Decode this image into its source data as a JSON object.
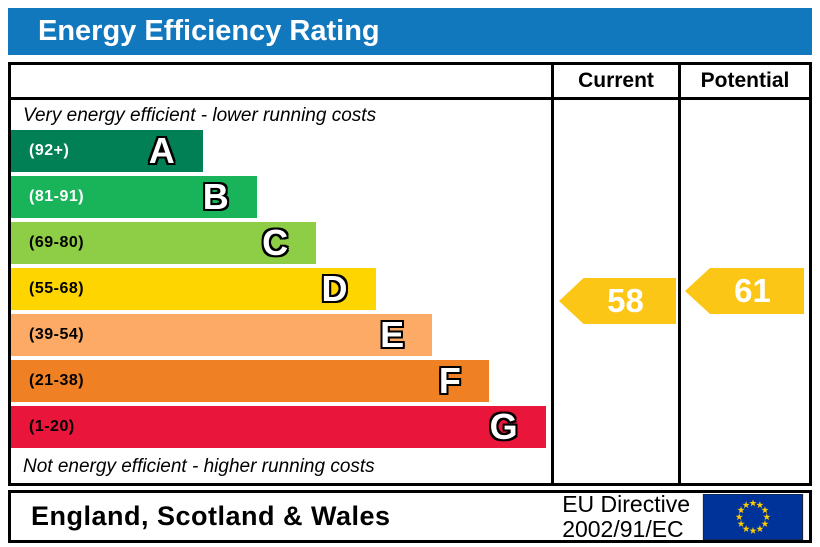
{
  "title": "Energy Efficiency Rating",
  "colors": {
    "title_bar": "#1278be",
    "arrow": "#fcc616",
    "eu_flag_blue": "#003399",
    "eu_flag_stars": "#ffcc00",
    "border": "#000000"
  },
  "columns": {
    "current": "Current",
    "potential": "Potential"
  },
  "notes": {
    "top": "Very energy efficient - lower running costs",
    "bottom": "Not energy efficient - higher running costs"
  },
  "bands": [
    {
      "label": "A",
      "range": "(92+)",
      "color": "#008054",
      "range_text_color": "#ffffff",
      "width_pct": 35.5
    },
    {
      "label": "B",
      "range": "(81-91)",
      "color": "#19b459",
      "range_text_color": "#ffffff",
      "width_pct": 45.5
    },
    {
      "label": "C",
      "range": "(69-80)",
      "color": "#8dce46",
      "range_text_color": "#000000",
      "width_pct": 56.5
    },
    {
      "label": "D",
      "range": "(55-68)",
      "color": "#ffd500",
      "range_text_color": "#000000",
      "width_pct": 67.5
    },
    {
      "label": "E",
      "range": "(39-54)",
      "color": "#fcaa65",
      "range_text_color": "#000000",
      "width_pct": 78
    },
    {
      "label": "F",
      "range": "(21-38)",
      "color": "#ef8023",
      "range_text_color": "#000000",
      "width_pct": 88.5
    },
    {
      "label": "G",
      "range": "(1-20)",
      "color": "#e9153b",
      "range_text_color": "#000000",
      "width_pct": 99
    }
  ],
  "ratings": {
    "current": {
      "value": "58",
      "band": "D"
    },
    "potential": {
      "value": "61",
      "band": "D"
    }
  },
  "footer": {
    "region": "England, Scotland & Wales",
    "directive_line1": "EU Directive",
    "directive_line2": "2002/91/EC"
  },
  "chart_data": {
    "type": "bar",
    "title": "Energy Efficiency Rating",
    "orientation": "horizontal",
    "categories": [
      "A",
      "B",
      "C",
      "D",
      "E",
      "F",
      "G"
    ],
    "band_ranges": [
      "92+",
      "81-91",
      "69-80",
      "55-68",
      "39-54",
      "21-38",
      "1-20"
    ],
    "band_colors": [
      "#008054",
      "#19b459",
      "#8dce46",
      "#ffd500",
      "#fcaa65",
      "#ef8023",
      "#e9153b"
    ],
    "bar_lengths_pct": [
      35.5,
      45.5,
      56.5,
      67.5,
      78,
      88.5,
      99
    ],
    "scale_range": [
      1,
      100
    ],
    "series": [
      {
        "name": "Current",
        "value": 58,
        "band": "D"
      },
      {
        "name": "Potential",
        "value": 61,
        "band": "D"
      }
    ],
    "annotations": [
      "Very energy efficient - lower running costs",
      "Not energy efficient - higher running costs"
    ],
    "footer_region": "England, Scotland & Wales",
    "footer_directive": "EU Directive 2002/91/EC",
    "grid": false,
    "legend_position": "none"
  }
}
